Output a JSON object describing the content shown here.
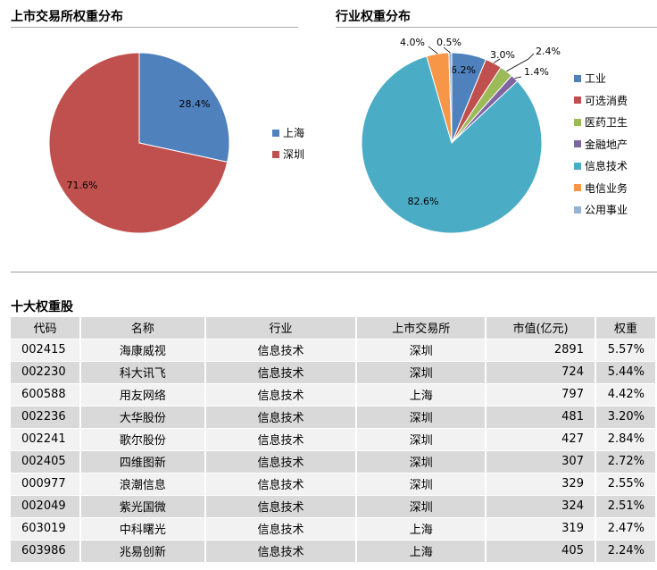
{
  "titles": {
    "exchange": "上市交易所权重分布",
    "industry": "行业权重分布",
    "top10": "十大权重股"
  },
  "chart_data": [
    {
      "type": "pie",
      "title": "上市交易所权重分布",
      "labels": [
        "上海",
        "深圳"
      ],
      "values": [
        28.4,
        71.6
      ],
      "data_labels": [
        "28.4%",
        "71.6%"
      ],
      "colors": [
        "#4f81bd",
        "#c0504d"
      ],
      "legend": "right"
    },
    {
      "type": "pie",
      "title": "行业权重分布",
      "labels": [
        "工业",
        "可选消费",
        "医药卫生",
        "金融地产",
        "信息技术",
        "电信业务",
        "公用事业"
      ],
      "values": [
        6.2,
        3.0,
        2.4,
        1.4,
        82.6,
        4.0,
        0.5
      ],
      "data_labels": [
        "6.2%",
        "3.0%",
        "2.4%",
        "1.4%",
        "82.6%",
        "4.0%",
        "0.5%"
      ],
      "colors": [
        "#4f81bd",
        "#c0504d",
        "#9bbb59",
        "#8064a2",
        "#4bacc6",
        "#f79646",
        "#95b3d7"
      ],
      "legend": "right"
    }
  ],
  "table": {
    "headers": [
      "代码",
      "名称",
      "行业",
      "上市交易所",
      "市值(亿元)",
      "权重"
    ],
    "rows": [
      [
        "002415",
        "海康威视",
        "信息技术",
        "深圳",
        "2891",
        "5.57%"
      ],
      [
        "002230",
        "科大讯飞",
        "信息技术",
        "深圳",
        "724",
        "5.44%"
      ],
      [
        "600588",
        "用友网络",
        "信息技术",
        "上海",
        "797",
        "4.42%"
      ],
      [
        "002236",
        "大华股份",
        "信息技术",
        "深圳",
        "481",
        "3.20%"
      ],
      [
        "002241",
        "歌尔股份",
        "信息技术",
        "深圳",
        "427",
        "2.84%"
      ],
      [
        "002405",
        "四维图新",
        "信息技术",
        "深圳",
        "307",
        "2.72%"
      ],
      [
        "000977",
        "浪潮信息",
        "信息技术",
        "深圳",
        "329",
        "2.55%"
      ],
      [
        "002049",
        "紫光国微",
        "信息技术",
        "深圳",
        "324",
        "2.51%"
      ],
      [
        "603019",
        "中科曙光",
        "信息技术",
        "上海",
        "319",
        "2.47%"
      ],
      [
        "603986",
        "兆易创新",
        "信息技术",
        "上海",
        "405",
        "2.24%"
      ]
    ]
  }
}
